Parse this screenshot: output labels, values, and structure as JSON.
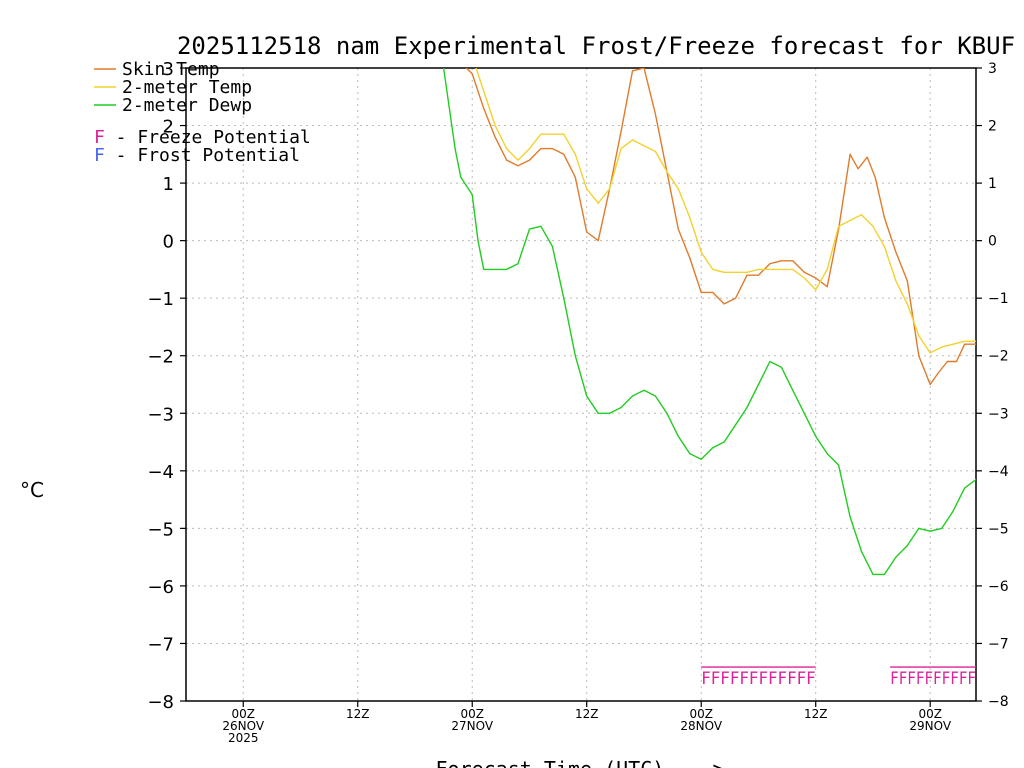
{
  "chart_data": {
    "type": "line",
    "title": "2025112518 nam Experimental Frost/Freeze forecast for KBUF",
    "ylabel": "°C",
    "xlabel": "Forecast Time (UTC) --->",
    "ylim": [
      -8,
      3
    ],
    "y_ticks": [
      3,
      2,
      1,
      0,
      -1,
      -2,
      -3,
      -4,
      -5,
      -6,
      -7,
      -8
    ],
    "y_tick_labels": [
      "3",
      "2",
      "1",
      "0",
      "−1",
      "−2",
      "−3",
      "−4",
      "−5",
      "−6",
      "−7",
      "−8"
    ],
    "xlim": [
      -5,
      64
    ],
    "x_units": "hours since 00Z 26NOV 2025",
    "x_ticks": [
      {
        "x": 0,
        "labels": [
          "00Z",
          "26NOV",
          "2025"
        ]
      },
      {
        "x": 10,
        "labels": [
          "12Z"
        ]
      },
      {
        "x": 20,
        "labels": [
          "00Z",
          "27NOV"
        ]
      },
      {
        "x": 30,
        "labels": [
          "12Z"
        ]
      },
      {
        "x": 40,
        "labels": [
          "00Z",
          "28NOV"
        ]
      },
      {
        "x": 50,
        "labels": [
          "12Z"
        ]
      },
      {
        "x": 60,
        "labels": [
          "00Z",
          "29NOV"
        ]
      }
    ],
    "grid": true,
    "legend": [
      {
        "text": "Skin Temp",
        "color": "#e07b2b",
        "swatch": "line"
      },
      {
        "text": "2-meter Temp",
        "color": "#f2d22e",
        "swatch": "line"
      },
      {
        "text": "2-meter Dewp",
        "color": "#22cc22",
        "swatch": "line"
      },
      {
        "text": "F - Freeze Potential",
        "color": "#dd2299",
        "swatch": "glyph"
      },
      {
        "text": "F - Frost Potential",
        "color": "#4466ee",
        "swatch": "glyph"
      }
    ],
    "series": [
      {
        "name": "Skin Temp",
        "color": "#e07b2b",
        "x": [
          17.5,
          20.0,
          21.0,
          22.0,
          23.0,
          24.0,
          25.0,
          26.0,
          27.0,
          28.0,
          29.0,
          30.0,
          31.0,
          32.0,
          33.0,
          34.0,
          35.0,
          36.0,
          37.0,
          38.0,
          39.0,
          40.0,
          41.0,
          42.0,
          43.0,
          44.0,
          45.0,
          46.0,
          47.0,
          48.0,
          49.0,
          50.0,
          51.0,
          52.0,
          53.0,
          53.7,
          54.5,
          55.2,
          56.0,
          57.0,
          58.0,
          59.0,
          60.0,
          60.7,
          61.5,
          62.3,
          63.0,
          64.0
        ],
        "y": [
          3.4,
          2.9,
          2.3,
          1.8,
          1.4,
          1.3,
          1.4,
          1.6,
          1.6,
          1.5,
          1.1,
          0.15,
          0.0,
          0.9,
          1.9,
          2.95,
          3.0,
          2.2,
          1.2,
          0.2,
          -0.3,
          -0.9,
          -0.9,
          -1.1,
          -1.0,
          -0.6,
          -0.6,
          -0.4,
          -0.35,
          -0.35,
          -0.55,
          -0.65,
          -0.8,
          0.2,
          1.5,
          1.25,
          1.45,
          1.1,
          0.4,
          -0.2,
          -0.7,
          -2.0,
          -2.5,
          -2.3,
          -2.1,
          -2.1,
          -1.8,
          -1.8
        ]
      },
      {
        "name": "2-meter Temp",
        "color": "#f2d22e",
        "x": [
          17.5,
          20.0,
          21.0,
          22.0,
          23.0,
          24.0,
          25.0,
          26.0,
          27.0,
          28.0,
          29.0,
          30.0,
          31.0,
          32.0,
          33.0,
          34.0,
          35.0,
          36.0,
          37.0,
          38.0,
          39.0,
          40.0,
          41.0,
          42.0,
          43.0,
          44.0,
          45.0,
          46.0,
          47.0,
          48.0,
          49.0,
          50.0,
          51.0,
          52.0,
          53.0,
          54.0,
          55.0,
          56.0,
          57.0,
          58.0,
          59.0,
          60.0,
          61.0,
          62.0,
          63.0,
          64.0
        ],
        "y": [
          3.6,
          3.2,
          2.6,
          2.0,
          1.6,
          1.4,
          1.6,
          1.85,
          1.85,
          1.85,
          1.5,
          0.9,
          0.65,
          0.9,
          1.6,
          1.75,
          1.65,
          1.55,
          1.2,
          0.9,
          0.4,
          -0.2,
          -0.5,
          -0.55,
          -0.55,
          -0.55,
          -0.5,
          -0.5,
          -0.5,
          -0.5,
          -0.65,
          -0.85,
          -0.5,
          0.25,
          0.35,
          0.45,
          0.25,
          -0.1,
          -0.7,
          -1.1,
          -1.65,
          -1.95,
          -1.85,
          -1.8,
          -1.75,
          -1.75
        ]
      },
      {
        "name": "2-meter Dewp",
        "color": "#22cc22",
        "x": [
          17.5,
          18.5,
          19.0,
          20.0,
          20.5,
          21.0,
          22.0,
          23.0,
          24.0,
          25.0,
          26.0,
          27.0,
          28.0,
          29.0,
          30.0,
          31.0,
          32.0,
          33.0,
          34.0,
          35.0,
          36.0,
          37.0,
          38.0,
          39.0,
          40.0,
          41.0,
          42.0,
          43.0,
          44.0,
          45.0,
          46.0,
          47.0,
          48.0,
          49.0,
          50.0,
          51.0,
          52.0,
          53.0,
          54.0,
          55.0,
          56.0,
          57.0,
          58.0,
          59.0,
          60.0,
          61.0,
          62.0,
          63.0,
          64.0
        ],
        "y": [
          3.0,
          1.6,
          1.1,
          0.8,
          0.0,
          -0.5,
          -0.5,
          -0.5,
          -0.4,
          0.2,
          0.25,
          -0.1,
          -1.0,
          -2.0,
          -2.7,
          -3.0,
          -3.0,
          -2.9,
          -2.7,
          -2.6,
          -2.7,
          -3.0,
          -3.4,
          -3.7,
          -3.8,
          -3.6,
          -3.5,
          -3.2,
          -2.9,
          -2.5,
          -2.1,
          -2.2,
          -2.6,
          -3.0,
          -3.4,
          -3.7,
          -3.9,
          -4.8,
          -5.4,
          -5.8,
          -5.8,
          -5.5,
          -5.3,
          -5.0,
          -5.05,
          -5.0,
          -4.7,
          -4.3,
          -4.15
        ]
      }
    ],
    "annotations": [
      {
        "text": "FFFFFFFFFFFF",
        "color": "#dd2299",
        "x_start": 40.0,
        "x_end": 50.0,
        "y": -7.55
      },
      {
        "text": "FFFFFFFFFF",
        "color": "#dd2299",
        "x_start": 56.5,
        "x_end": 64.0,
        "y": -7.55
      }
    ]
  }
}
